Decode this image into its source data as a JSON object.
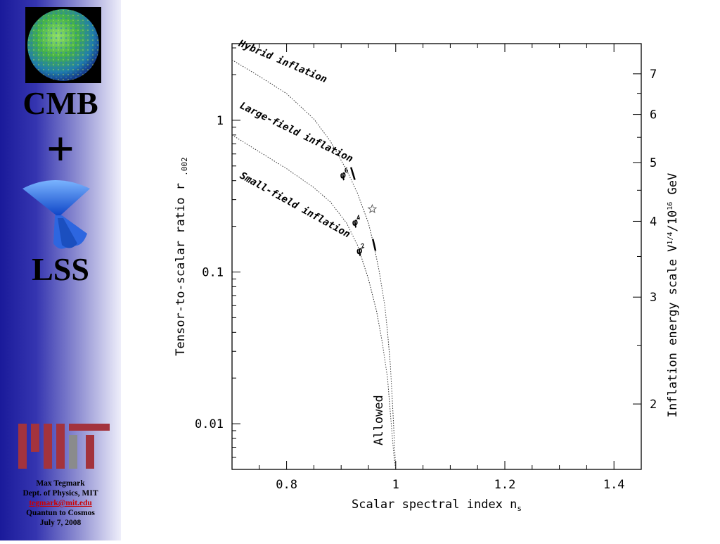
{
  "sidebar": {
    "title_top": "CMB",
    "title_plus": "+",
    "title_bottom": "LSS",
    "credits": {
      "name": "Max Tegmark",
      "department": "Dept. of Physics, MIT",
      "email": "tegmark@mit.edu",
      "event": "Quantun to Cosmos",
      "date": "July 7, 2008"
    },
    "colors": {
      "gradient_dark": "#1a1a9a",
      "gradient_light": "#eeeefa",
      "mit_red": "#a3333d",
      "mit_gray": "#8a8b8c"
    }
  },
  "chart_data": {
    "type": "line",
    "xlabel": "Scalar spectral index n",
    "xlabel_sub": "s",
    "ylabel": "Tensor-to-scalar ratio r",
    "ylabel_sub": ".002",
    "ylabel_right": "Inflation energy scale V",
    "ylabel_right_sup1": "1/4",
    "ylabel_right_mid": "/10",
    "ylabel_right_sup2": "16",
    "ylabel_right_end": " GeV",
    "xlim": [
      0.7,
      1.45
    ],
    "ylim": [
      0.005,
      3.2
    ],
    "y_scale": "log",
    "x_ticks": [
      {
        "value": 0.8,
        "label": "0.8"
      },
      {
        "value": 1.0,
        "label": "1"
      },
      {
        "value": 1.2,
        "label": "1.2"
      },
      {
        "value": 1.4,
        "label": "1.4"
      }
    ],
    "y_ticks": [
      {
        "value": 0.01,
        "label": "0.01"
      },
      {
        "value": 0.1,
        "label": "0.1"
      },
      {
        "value": 1,
        "label": "1"
      }
    ],
    "right_ticks": [
      {
        "value": 2,
        "label": "2"
      },
      {
        "value": 3,
        "label": "3"
      },
      {
        "value": 4,
        "label": "4"
      },
      {
        "value": 5,
        "label": "5"
      },
      {
        "value": 6,
        "label": "6"
      },
      {
        "value": 7,
        "label": "7"
      }
    ],
    "region_labels": [
      {
        "name": "Hybrid inflation",
        "x": 0.711,
        "y": 3.1,
        "angle": 23
      },
      {
        "name": "Large-field inflation",
        "x": 0.713,
        "y": 1.21,
        "angle": 26
      },
      {
        "name": "Small-field inflation",
        "x": 0.713,
        "y": 0.42,
        "angle": 29
      }
    ],
    "series": [
      {
        "x": [
          0.7,
          0.75,
          0.8,
          0.85,
          0.88,
          0.91,
          0.93,
          0.95,
          0.96,
          0.97,
          0.98,
          0.985,
          0.99,
          0.993,
          0.996,
          0.998,
          1.0
        ],
        "y": [
          2.5,
          1.95,
          1.5,
          1.02,
          0.73,
          0.47,
          0.33,
          0.21,
          0.15,
          0.1,
          0.06,
          0.04,
          0.025,
          0.016,
          0.01,
          0.007,
          0.005
        ]
      },
      {
        "x": [
          0.7,
          0.75,
          0.8,
          0.85,
          0.88,
          0.91,
          0.93,
          0.95,
          0.965,
          0.975,
          0.985,
          0.99,
          0.994,
          0.997,
          1.0
        ],
        "y": [
          0.8,
          0.62,
          0.48,
          0.36,
          0.29,
          0.21,
          0.15,
          0.09,
          0.055,
          0.035,
          0.02,
          0.012,
          0.008,
          0.006,
          0.005
        ]
      }
    ],
    "predictions": [
      {
        "label": "φ",
        "exponent": "6",
        "x": 0.9,
        "y": 0.41,
        "x1": 0.918,
        "y1": 0.49,
        "x2": 0.925,
        "y2": 0.405
      },
      {
        "label": "φ",
        "exponent": "4",
        "x": 0.922,
        "y": 0.2,
        "star_x": 0.957,
        "star_y": 0.26
      },
      {
        "label": "φ",
        "exponent": "2",
        "x": 0.93,
        "y": 0.13,
        "x1": 0.958,
        "y1": 0.165,
        "x2": 0.963,
        "y2": 0.138
      }
    ],
    "annotation": {
      "text": "Allowed",
      "x": 0.976,
      "y": 0.0072,
      "angle": -90
    }
  }
}
